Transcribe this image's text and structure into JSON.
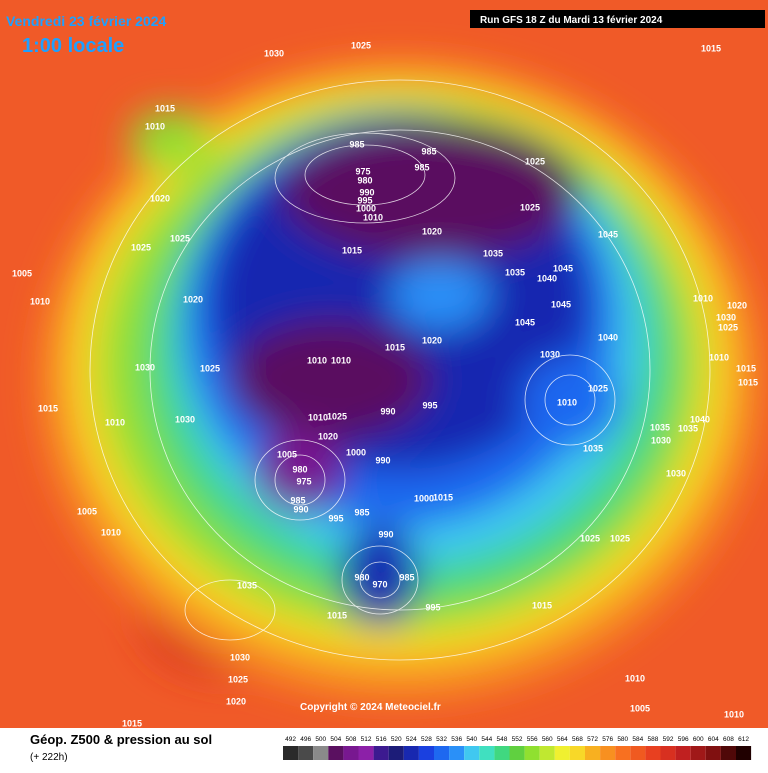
{
  "header": {
    "date": "Vendredi 23 février 2024",
    "time": "1:00 locale",
    "run": "Run GFS 18 Z du Mardi 13 février 2024"
  },
  "copyright": "Copyright © 2024 Meteociel.fr",
  "legend": {
    "title": "Géop. Z500 & pression au sol",
    "lead": "(+ 222h)",
    "levels": [
      492,
      496,
      500,
      504,
      508,
      512,
      516,
      520,
      524,
      528,
      532,
      536,
      540,
      544,
      548,
      552,
      556,
      560,
      564,
      568,
      572,
      576,
      580,
      584,
      588,
      592,
      596,
      600,
      604,
      608,
      612
    ],
    "colors": [
      "#2a2a2a",
      "#4a4a4a",
      "#8a8a8a",
      "#5a1060",
      "#781890",
      "#8c20a8",
      "#3c1a90",
      "#1c1c78",
      "#1828b0",
      "#1a40e0",
      "#1e68f0",
      "#2a90f8",
      "#40c8f0",
      "#40e0c0",
      "#40d880",
      "#60d040",
      "#90e030",
      "#c0e830",
      "#f0f030",
      "#f8d828",
      "#f8b020",
      "#f89020",
      "#f87020",
      "#f05a20",
      "#e84020",
      "#d83020",
      "#c02020",
      "#a01818",
      "#801010",
      "#500808",
      "#200000"
    ]
  },
  "isobar_labels": [
    "1025",
    "1030",
    "1015",
    "1015",
    "1010",
    "985",
    "985",
    "975",
    "985",
    "980",
    "990",
    "995",
    "1000",
    "1010",
    "1025",
    "1025",
    "1020",
    "1025",
    "1025",
    "1020",
    "1015",
    "1035",
    "1035",
    "1045",
    "1045",
    "1040",
    "1005",
    "1010",
    "1020",
    "1045",
    "1045",
    "1040",
    "1010",
    "1020",
    "1025",
    "1030",
    "1030",
    "1025",
    "1010",
    "1010",
    "1015",
    "1020",
    "1030",
    "1010",
    "1015",
    "1015",
    "1010",
    "1025",
    "1015",
    "1010",
    "1030",
    "1010",
    "1025",
    "990",
    "995",
    "1020",
    "1040",
    "1035",
    "1035",
    "1030",
    "1035",
    "1000",
    "990",
    "1005",
    "980",
    "975",
    "1030",
    "985",
    "990",
    "995",
    "985",
    "1000",
    "1015",
    "1005",
    "1010",
    "990",
    "1025",
    "1025",
    "980",
    "970",
    "985",
    "1035",
    "995",
    "1015",
    "1015",
    "1030",
    "1025",
    "1020",
    "1010",
    "1005",
    "1010",
    "1015"
  ]
}
